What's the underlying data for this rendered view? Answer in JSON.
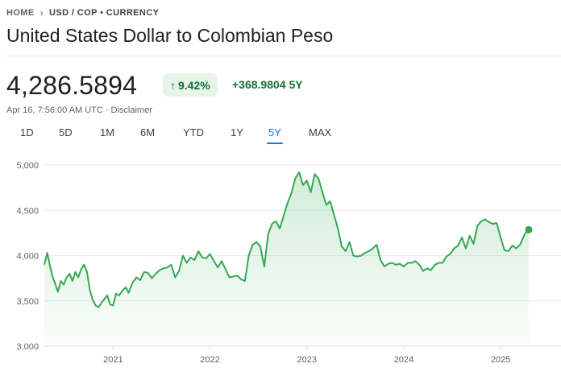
{
  "breadcrumb": {
    "home": "HOME",
    "current": "USD / COP • CURRENCY"
  },
  "title": "United States Dollar to Colombian Peso",
  "quote": {
    "price": "4,286.5894",
    "change_pct": "9.42%",
    "change_abs": "+368.9804 5Y",
    "timestamp": "Apr 16, 7:56:00 AM UTC",
    "disclaimer": "Disclaimer"
  },
  "range_tabs": [
    {
      "label": "1D",
      "active": false
    },
    {
      "label": "5D",
      "active": false
    },
    {
      "label": "1M",
      "active": false
    },
    {
      "label": "6M",
      "active": false
    },
    {
      "label": "YTD",
      "active": false
    },
    {
      "label": "1Y",
      "active": false
    },
    {
      "label": "5Y",
      "active": true
    },
    {
      "label": "MAX",
      "active": false
    }
  ],
  "colors": {
    "up": "#137333",
    "line": "#34a853",
    "accent": "#1a73e8",
    "grid": "#e8eaed"
  },
  "icons": {
    "breadcrumb_separator": "chevron-right-icon",
    "change_arrow": "arrow-up-icon"
  },
  "chart_data": {
    "type": "area",
    "ylim": [
      3000,
      5000
    ],
    "y_ticks": [
      5000,
      4500,
      4000,
      3500,
      3000
    ],
    "y_tick_labels": [
      "5,000",
      "4,500",
      "4,000",
      "3,500",
      "3,000"
    ],
    "x_ticks": [
      "2021",
      "2022",
      "2023",
      "2024",
      "2025"
    ],
    "x_tick_values": [
      2021.0,
      2022.0,
      2023.0,
      2024.0,
      2025.0
    ],
    "xlim": [
      2020.29,
      2025.29
    ],
    "grid": true,
    "series": [
      {
        "x": [
          2020.29,
          2020.32,
          2020.35,
          2020.38,
          2020.4,
          2020.43,
          2020.46,
          2020.49,
          2020.52,
          2020.55,
          2020.58,
          2020.61,
          2020.64,
          2020.67,
          2020.7,
          2020.73,
          2020.76,
          2020.79,
          2020.82,
          2020.85,
          2020.88,
          2020.91,
          2020.94,
          2020.97,
          2021.0,
          2021.03,
          2021.06,
          2021.1,
          2021.13,
          2021.16,
          2021.2,
          2021.24,
          2021.28,
          2021.32,
          2021.36,
          2021.4,
          2021.44,
          2021.48,
          2021.52,
          2021.56,
          2021.6,
          2021.64,
          2021.68,
          2021.72,
          2021.76,
          2021.8,
          2021.84,
          2021.88,
          2021.92,
          2021.96,
          2022.0,
          2022.04,
          2022.08,
          2022.12,
          2022.16,
          2022.2,
          2022.24,
          2022.28,
          2022.32,
          2022.36,
          2022.4,
          2022.44,
          2022.48,
          2022.52,
          2022.56,
          2022.6,
          2022.64,
          2022.68,
          2022.72,
          2022.76,
          2022.8,
          2022.84,
          2022.88,
          2022.92,
          2022.96,
          2023.0,
          2023.04,
          2023.08,
          2023.12,
          2023.16,
          2023.2,
          2023.24,
          2023.28,
          2023.32,
          2023.36,
          2023.4,
          2023.44,
          2023.48,
          2023.52,
          2023.56,
          2023.6,
          2023.64,
          2023.68,
          2023.72,
          2023.76,
          2023.8,
          2023.84,
          2023.88,
          2023.92,
          2023.96,
          2024.0,
          2024.04,
          2024.08,
          2024.12,
          2024.16,
          2024.2,
          2024.24,
          2024.28,
          2024.32,
          2024.36,
          2024.4,
          2024.44,
          2024.48,
          2024.52,
          2024.56,
          2024.6,
          2024.64,
          2024.68,
          2024.72,
          2024.76,
          2024.8,
          2024.84,
          2024.88,
          2024.92,
          2024.96,
          2025.0,
          2025.04,
          2025.08,
          2025.12,
          2025.16,
          2025.2,
          2025.24,
          2025.27,
          2025.29
        ],
        "y": [
          3900,
          4030,
          3880,
          3750,
          3700,
          3600,
          3720,
          3680,
          3760,
          3800,
          3720,
          3820,
          3760,
          3850,
          3900,
          3820,
          3620,
          3510,
          3450,
          3430,
          3480,
          3520,
          3560,
          3460,
          3450,
          3580,
          3560,
          3620,
          3650,
          3590,
          3700,
          3760,
          3730,
          3820,
          3810,
          3750,
          3800,
          3840,
          3860,
          3870,
          3900,
          3760,
          3830,
          4000,
          3920,
          3980,
          3950,
          4050,
          3980,
          3970,
          4020,
          3940,
          3870,
          3940,
          3850,
          3760,
          3770,
          3780,
          3740,
          3720,
          4000,
          4120,
          4150,
          4100,
          3880,
          4240,
          4350,
          4380,
          4300,
          4440,
          4580,
          4690,
          4850,
          4920,
          4780,
          4830,
          4700,
          4900,
          4850,
          4700,
          4560,
          4600,
          4450,
          4300,
          4100,
          4050,
          4150,
          4000,
          3990,
          4000,
          4030,
          4050,
          4080,
          4120,
          3950,
          3880,
          3910,
          3920,
          3900,
          3910,
          3880,
          3920,
          3920,
          3940,
          3900,
          3830,
          3860,
          3840,
          3900,
          3920,
          3920,
          3990,
          4020,
          4080,
          4110,
          4200,
          4080,
          4220,
          4130,
          4330,
          4380,
          4400,
          4370,
          4350,
          4360,
          4200,
          4060,
          4050,
          4110,
          4080,
          4120,
          4220,
          4270,
          4286.59
        ]
      }
    ]
  }
}
